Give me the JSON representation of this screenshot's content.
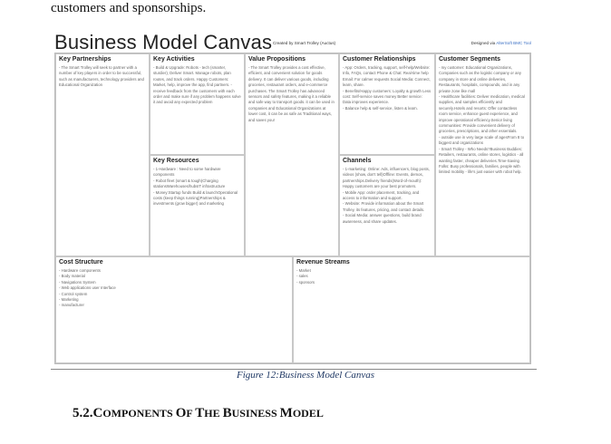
{
  "intro_text": "customers and sponsorships.",
  "canvas": {
    "title": "Business Model Canvas",
    "created_by": "Created by Smart Trolley (Auctus)",
    "designed_via_prefix": "Designed via",
    "designed_via_tool": "AlterSoft BMC Tool"
  },
  "blocks": {
    "key_partnerships": {
      "title": "Key Partnerships",
      "text": "- The Smart Trolley will seek to partner with a number of key players in order to be successful, such as manufacturers, technology providers and Educational Organization"
    },
    "key_activities": {
      "title": "Key Activities",
      "text": "- Build & Upgrade: Robots - tech (smarter, sturdier), Deliver Smart. Manage robots, plan routes, and track orders. Happy Customers: Market, help, improve the app, find partners. - receive feedback from the customers with each order and make sure if any problem happens solve it and avoid any expected problem"
    },
    "key_resources": {
      "title": "Key Resources",
      "text": "- 1-Hardware : Need to some hardware components\n- Robot fleet (smart & tough)Charging stationsWarehouses/hubsIT infrastructure\n- Money:Startup funds Build & launchOperational costs (keep things running)Partnerships & investments (grow bigger) and marketing"
    },
    "value_propositions": {
      "title": "Value Propositions",
      "text": "- The Smart Trolley provides a cost effective, efficient, and convenient solution for goods delivery. It can deliver various goods, including groceries, restaurant orders, and e-commerce purchases. The Smart Trolley has advanced sensors and safety features, making it a reliable and safe way to transport goods. it can be used in companies and Educational Organizations at lower cost, it can be as safe as Traditional ways, and saves you!"
    },
    "customer_relationships": {
      "title": "Customer Relationships",
      "text": "- App: Orders, tracking, support, self-help/Website: Info, FAQs, contact Phone & Chat: Real-time help Email: For calmer requests Social Media: Connect, learn, share.\n- Benefits/Happy customers: Loyalty & growth Less cost: Self-service saves money Better service: Data improves experience.\n- Balance help & self-service, listen & learn."
    },
    "channels": {
      "title": "Channels",
      "text": "- 1-marketing: Online: Ads, influencers, blog posts, videos (show, don't tell)Offline: Events, demos, partnerships.Delivery friends(Word-of-mouth): Happy customers are your best promoters.\n- Mobile App: order placement, tracking, and access to information and support.\n- Website: Provide information about the Smart Trolley, its features, pricing, and contact details.\n- Social Media: answer questions, build brand awareness, and share updates."
    },
    "customer_segments": {
      "title": "Customer Segments",
      "text": "- my customer: Educational Organizations, Companies such as the logistic company or any company in store and online deliveries, Restaurants, hospitals, compounds, and in any private zone like mall\n- Healthcare facilities: Deliver medication, medical supplies, and samples efficiently and securely.Hotels and resorts: Offer contactless room service, enhance guest experience, and improve operational efficiency.Senior living communities: Provide convenient delivery of groceries, prescriptions, and other essentials.\n- outside use in very large scale of agesFrom 8 to biggest and organizations\n- Smart Trolley - Who Needs?Business Buddies: Retailers, restaurants, online stores, logistics - all wanting faster, cheaper deliveries.Time-Saving Folks: Busy professionals, families, people with limited mobility - life's just easier with robot help."
    },
    "cost_structure": {
      "title": "Cost Structure",
      "text": "- Hardware components\n- Body material\n- Navigations System\n- Web applications user Interface\n- Control system\n- Marketing\n- manufacturer"
    },
    "revenue_streams": {
      "title": "Revenue Streams",
      "text": "- Market\n- sales\n- sponsors"
    }
  },
  "caption": "Figure 12:Business Model Canvas",
  "section_heading": {
    "number": "5.2.",
    "words": [
      {
        "initial": "C",
        "rest": "OMPONENTS "
      },
      {
        "initial": "O",
        "rest": "F "
      },
      {
        "initial": "T",
        "rest": "HE "
      },
      {
        "initial": "B",
        "rest": "USINESS "
      },
      {
        "initial": "M",
        "rest": "ODEL"
      }
    ]
  }
}
